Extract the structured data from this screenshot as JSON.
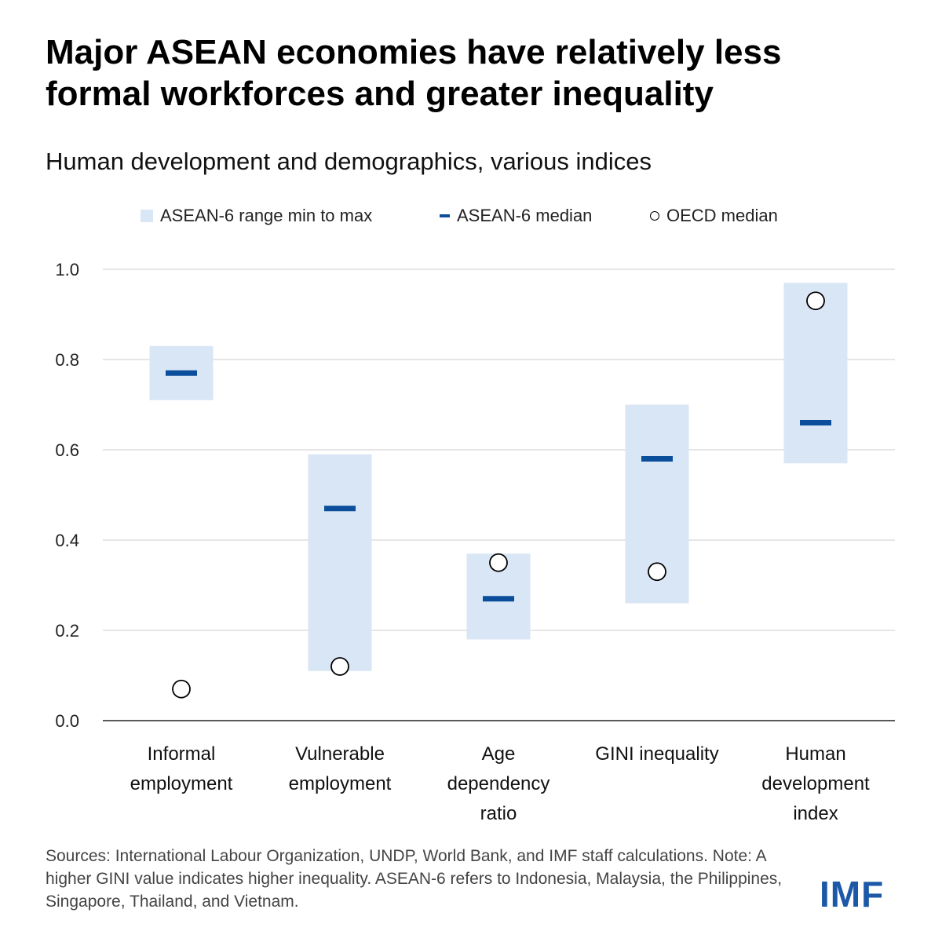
{
  "header": {
    "title_line1": "Major ASEAN economies have relatively less",
    "title_line2": "formal workforces and greater inequality",
    "subtitle": "Human development and demographics, various indices"
  },
  "legend": {
    "range": "ASEAN-6 range min to max",
    "median": "ASEAN-6 median",
    "oecd": "OECD median"
  },
  "colors": {
    "range_fill": "#d9e6f5",
    "median": "#0b4f9c",
    "grid": "#d6d6d6",
    "axis": "#222222",
    "logo": "#1c58a8"
  },
  "chart_data": {
    "type": "range-dot",
    "title": "Major ASEAN economies have relatively less formal workforces and greater inequality",
    "subtitle": "Human development and demographics, various indices",
    "ylim": [
      0,
      1
    ],
    "yticks": [
      0,
      0.2,
      0.4,
      0.6,
      0.8,
      1
    ],
    "ytick_labels": [
      "0.0",
      "0.2",
      "0.4",
      "0.6",
      "0.8",
      "1.0"
    ],
    "grid": true,
    "legend_position": "top",
    "categories": [
      {
        "label": [
          "Informal",
          "employment"
        ],
        "min": 0.71,
        "max": 0.83,
        "median": 0.77,
        "oecd": 0.07
      },
      {
        "label": [
          "Vulnerable",
          "employment"
        ],
        "min": 0.11,
        "max": 0.59,
        "median": 0.47,
        "oecd": 0.12
      },
      {
        "label": [
          "Age",
          "dependency",
          "ratio"
        ],
        "min": 0.18,
        "max": 0.37,
        "median": 0.27,
        "oecd": 0.35
      },
      {
        "label": [
          "GINI inequality"
        ],
        "min": 0.26,
        "max": 0.7,
        "median": 0.58,
        "oecd": 0.33
      },
      {
        "label": [
          "Human",
          "development",
          "index"
        ],
        "min": 0.57,
        "max": 0.97,
        "median": 0.66,
        "oecd": 0.93
      }
    ]
  },
  "footer": {
    "sources": "Sources: International Labour Organization, UNDP, World Bank, and IMF staff calculations. Note: A higher GINI value indicates higher inequality. ASEAN-6 refers to Indonesia, Malaysia, the Philippines, Singapore, Thailand, and Vietnam.",
    "logo": "IMF"
  }
}
